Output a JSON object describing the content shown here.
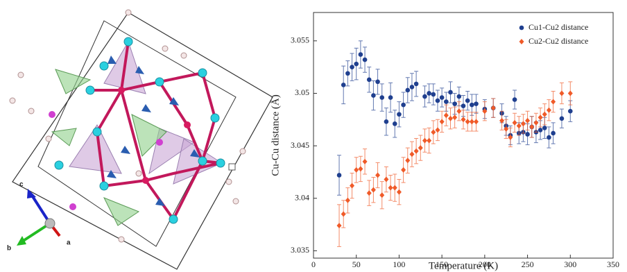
{
  "crystal_structure": {
    "axis_labels": [
      "a",
      "b",
      "c"
    ]
  },
  "chart_data": {
    "type": "scatter",
    "xlabel": "Temperature (K)",
    "ylabel": "Cu-Cu distance (Å)",
    "xlim": [
      0,
      350
    ],
    "xticks": [
      0,
      50,
      100,
      150,
      200,
      250,
      300,
      350
    ],
    "ylim": [
      3.0343,
      3.0577
    ],
    "yticks": [
      3.035,
      3.04,
      3.045,
      3.05,
      3.055
    ],
    "legend": "upper right",
    "series": [
      {
        "name": "Cu1-Cu2 distance",
        "color": "#1f3f8f",
        "marker": "circle",
        "x": [
          30,
          35,
          40,
          45,
          50,
          55,
          60,
          65,
          70,
          75,
          80,
          85,
          90,
          95,
          100,
          105,
          110,
          115,
          120,
          130,
          135,
          140,
          145,
          150,
          155,
          160,
          165,
          170,
          175,
          180,
          185,
          190,
          200,
          210,
          220,
          225,
          230,
          235,
          240,
          245,
          250,
          255,
          260,
          265,
          270,
          275,
          280,
          290,
          300
        ],
        "values": [
          3.0422,
          3.0508,
          3.0519,
          3.0525,
          3.0528,
          3.0537,
          3.0532,
          3.0513,
          3.0498,
          3.0511,
          3.0496,
          3.0473,
          3.0496,
          3.0471,
          3.048,
          3.0489,
          3.0503,
          3.0506,
          3.0509,
          3.0497,
          3.05,
          3.0499,
          3.0493,
          3.0496,
          3.0492,
          3.0501,
          3.049,
          3.0497,
          3.0488,
          3.0493,
          3.0489,
          3.049,
          3.0485,
          3.0486,
          3.0481,
          3.0469,
          3.046,
          3.0494,
          3.0462,
          3.0463,
          3.0461,
          3.0468,
          3.0463,
          3.0465,
          3.0467,
          3.0458,
          3.0462,
          3.0476,
          3.0483
        ],
        "errors": [
          0.0019,
          0.0018,
          0.0012,
          0.0013,
          0.0015,
          0.0013,
          0.0012,
          0.0012,
          0.0014,
          0.0012,
          0.0013,
          0.0013,
          0.0014,
          0.0013,
          0.0012,
          0.0012,
          0.0012,
          0.0013,
          0.0012,
          0.001,
          0.0009,
          0.001,
          0.001,
          0.0009,
          0.0009,
          0.001,
          0.001,
          0.0009,
          0.001,
          0.0009,
          0.001,
          0.0009,
          0.0009,
          0.0009,
          0.0009,
          0.0009,
          0.0009,
          0.0009,
          0.001,
          0.0009,
          0.001,
          0.001,
          0.001,
          0.0009,
          0.001,
          0.001,
          0.001,
          0.0009,
          0.001
        ]
      },
      {
        "name": "Cu2-Cu2 distance",
        "color": "#f05a28",
        "marker": "diamond",
        "x": [
          30,
          35,
          40,
          45,
          50,
          55,
          60,
          65,
          70,
          75,
          80,
          85,
          90,
          95,
          100,
          105,
          110,
          115,
          120,
          125,
          130,
          135,
          140,
          145,
          150,
          155,
          160,
          165,
          170,
          175,
          180,
          185,
          190,
          200,
          210,
          220,
          225,
          230,
          235,
          240,
          245,
          250,
          255,
          260,
          265,
          270,
          275,
          280,
          290,
          300
        ],
        "values": [
          3.0374,
          3.0385,
          3.0398,
          3.0412,
          3.0427,
          3.0428,
          3.0435,
          3.0405,
          3.0408,
          3.0422,
          3.0403,
          3.0418,
          3.041,
          3.041,
          3.0406,
          3.0427,
          3.0436,
          3.0442,
          3.0445,
          3.0448,
          3.0455,
          3.0455,
          3.0463,
          3.0465,
          3.0473,
          3.0479,
          3.0476,
          3.0477,
          3.0483,
          3.0475,
          3.0473,
          3.0473,
          3.0473,
          3.0483,
          3.0486,
          3.0474,
          3.0466,
          3.0458,
          3.0472,
          3.0469,
          3.0471,
          3.0474,
          3.0468,
          3.0472,
          3.0477,
          3.048,
          3.0484,
          3.0492,
          3.05,
          3.05
        ],
        "errors": [
          0.002,
          0.0013,
          0.0012,
          0.0012,
          0.0012,
          0.0012,
          0.0012,
          0.0012,
          0.0012,
          0.0012,
          0.0013,
          0.0012,
          0.0012,
          0.0013,
          0.0012,
          0.0012,
          0.0012,
          0.0012,
          0.0012,
          0.0012,
          0.0011,
          0.0012,
          0.0011,
          0.001,
          0.001,
          0.001,
          0.001,
          0.001,
          0.0009,
          0.0009,
          0.0009,
          0.0009,
          0.0009,
          0.0009,
          0.0009,
          0.0009,
          0.0009,
          0.0009,
          0.0009,
          0.0009,
          0.0009,
          0.0009,
          0.001,
          0.0009,
          0.0009,
          0.001,
          0.001,
          0.001,
          0.001,
          0.0011
        ]
      }
    ]
  }
}
